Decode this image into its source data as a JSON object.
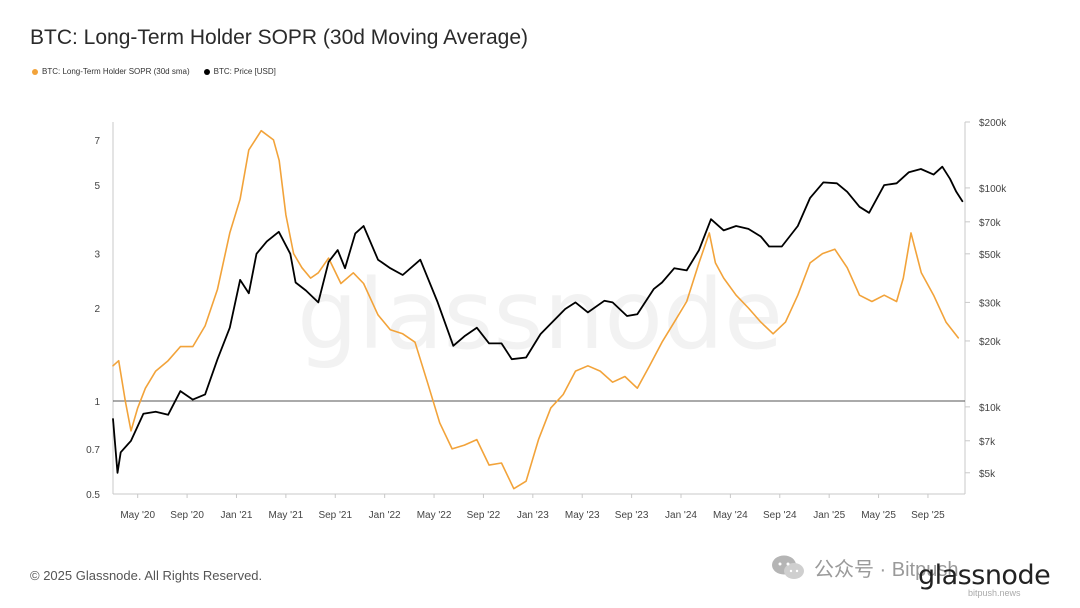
{
  "title": "BTC: Long-Term Holder SOPR (30d Moving Average)",
  "footer": "© 2025 Glassnode. All Rights Reserved.",
  "watermark": "glassnode",
  "brand": {
    "wechat_label": "公众号 · Bitpush",
    "logo_text": "glassnode",
    "sub_text": "bitpush.news"
  },
  "colors": {
    "sopr": "#f2a33a",
    "price": "#000000",
    "axis": "#c8c8c8",
    "refline": "#555555"
  },
  "chart_data": {
    "type": "line",
    "title": "BTC: Long-Term Holder SOPR (30d Moving Average)",
    "legend_position": "top-left",
    "grid": false,
    "x_range": [
      "2020-03",
      "2025-12"
    ],
    "x_ticks": [
      "May '20",
      "Sep '20",
      "Jan '21",
      "May '21",
      "Sep '21",
      "Jan '22",
      "May '22",
      "Sep '22",
      "Jan '23",
      "May '23",
      "Sep '23",
      "Jan '24",
      "May '24",
      "Sep '24",
      "Jan '25",
      "May '25",
      "Sep '25"
    ],
    "y_left": {
      "scale": "log",
      "range": [
        0.5,
        8
      ],
      "ticks": [
        0.5,
        0.7,
        1,
        2,
        3,
        5,
        7
      ],
      "tick_labels": [
        "0.5",
        "0.7",
        "1",
        "2",
        "3",
        "5",
        "7"
      ]
    },
    "y_right": {
      "scale": "log",
      "range": [
        4000,
        200000
      ],
      "ticks": [
        5000,
        7000,
        10000,
        20000,
        30000,
        50000,
        70000,
        100000,
        200000
      ],
      "tick_labels": [
        "$5k",
        "$7k",
        "$10k",
        "$20k",
        "$30k",
        "$50k",
        "$70k",
        "$100k",
        "$200k"
      ]
    },
    "reference_line": {
      "axis": "left",
      "value": 1
    },
    "series": [
      {
        "name": "BTC: Long-Term Holder SOPR (30d sma)",
        "axis": "left",
        "x": [
          "2020-03-01",
          "2020-03-15",
          "2020-04-01",
          "2020-04-15",
          "2020-05-01",
          "2020-05-20",
          "2020-06-15",
          "2020-07-15",
          "2020-08-15",
          "2020-09-15",
          "2020-10-15",
          "2020-11-15",
          "2020-12-15",
          "2021-01-10",
          "2021-02-01",
          "2021-03-01",
          "2021-04-01",
          "2021-04-15",
          "2021-05-01",
          "2021-05-20",
          "2021-06-10",
          "2021-07-01",
          "2021-07-20",
          "2021-08-15",
          "2021-09-15",
          "2021-10-15",
          "2021-11-10",
          "2021-12-15",
          "2022-01-15",
          "2022-02-15",
          "2022-03-15",
          "2022-04-15",
          "2022-05-15",
          "2022-06-15",
          "2022-07-15",
          "2022-08-15",
          "2022-09-15",
          "2022-10-15",
          "2022-11-15",
          "2022-12-15",
          "2023-01-15",
          "2023-02-15",
          "2023-03-15",
          "2023-04-15",
          "2023-05-15",
          "2023-06-15",
          "2023-07-15",
          "2023-08-15",
          "2023-09-15",
          "2023-10-15",
          "2023-11-15",
          "2023-12-15",
          "2024-01-15",
          "2024-02-15",
          "2024-03-10",
          "2024-03-25",
          "2024-04-15",
          "2024-05-15",
          "2024-06-15",
          "2024-07-15",
          "2024-08-15",
          "2024-09-15",
          "2024-10-15",
          "2024-11-15",
          "2024-12-15",
          "2025-01-15",
          "2025-02-15",
          "2025-03-15",
          "2025-04-15",
          "2025-05-15",
          "2025-06-15",
          "2025-07-01",
          "2025-07-20",
          "2025-08-15",
          "2025-09-15",
          "2025-10-15",
          "2025-11-15"
        ],
        "values": [
          1.3,
          1.35,
          1.0,
          0.8,
          0.95,
          1.1,
          1.25,
          1.35,
          1.5,
          1.5,
          1.75,
          2.3,
          3.5,
          4.5,
          6.5,
          7.5,
          7.0,
          6.0,
          4.0,
          3.0,
          2.7,
          2.5,
          2.6,
          2.9,
          2.4,
          2.6,
          2.4,
          1.9,
          1.7,
          1.65,
          1.55,
          1.15,
          0.85,
          0.7,
          0.72,
          0.75,
          0.62,
          0.63,
          0.52,
          0.55,
          0.75,
          0.95,
          1.05,
          1.25,
          1.3,
          1.25,
          1.15,
          1.2,
          1.1,
          1.3,
          1.55,
          1.8,
          2.1,
          2.8,
          3.5,
          2.8,
          2.5,
          2.2,
          2.0,
          1.8,
          1.65,
          1.8,
          2.2,
          2.8,
          3.0,
          3.1,
          2.7,
          2.2,
          2.1,
          2.2,
          2.1,
          2.5,
          3.5,
          2.6,
          2.2,
          1.8,
          1.6
        ]
      },
      {
        "name": "BTC: Price [USD]",
        "axis": "right",
        "x": [
          "2020-03-01",
          "2020-03-12",
          "2020-03-20",
          "2020-04-15",
          "2020-05-15",
          "2020-06-15",
          "2020-07-15",
          "2020-08-15",
          "2020-09-15",
          "2020-10-15",
          "2020-11-15",
          "2020-12-15",
          "2021-01-10",
          "2021-02-01",
          "2021-02-20",
          "2021-03-15",
          "2021-04-14",
          "2021-05-12",
          "2021-05-25",
          "2021-06-20",
          "2021-07-20",
          "2021-08-15",
          "2021-09-07",
          "2021-09-25",
          "2021-10-20",
          "2021-11-10",
          "2021-12-15",
          "2022-01-15",
          "2022-02-15",
          "2022-03-28",
          "2022-05-10",
          "2022-06-18",
          "2022-07-15",
          "2022-08-15",
          "2022-09-15",
          "2022-10-15",
          "2022-11-10",
          "2022-12-15",
          "2023-01-20",
          "2023-02-15",
          "2023-03-20",
          "2023-04-15",
          "2023-05-15",
          "2023-06-25",
          "2023-07-15",
          "2023-08-20",
          "2023-09-15",
          "2023-10-25",
          "2023-11-15",
          "2023-12-15",
          "2024-01-15",
          "2024-02-15",
          "2024-03-14",
          "2024-04-15",
          "2024-05-15",
          "2024-06-15",
          "2024-07-15",
          "2024-08-05",
          "2024-09-06",
          "2024-10-15",
          "2024-11-15",
          "2024-12-17",
          "2025-01-20",
          "2025-02-15",
          "2025-03-15",
          "2025-04-08",
          "2025-05-15",
          "2025-06-15",
          "2025-07-15",
          "2025-08-14",
          "2025-09-15",
          "2025-10-06",
          "2025-10-25",
          "2025-11-10",
          "2025-11-25"
        ],
        "values": [
          8800,
          5000,
          6200,
          7000,
          9300,
          9500,
          9200,
          11800,
          10800,
          11400,
          16500,
          23000,
          38000,
          33000,
          50000,
          57000,
          63000,
          50000,
          37000,
          34000,
          30000,
          46000,
          52000,
          43000,
          62000,
          67000,
          47000,
          43000,
          40000,
          47000,
          30000,
          19000,
          21000,
          23000,
          19500,
          19500,
          16500,
          16800,
          21500,
          24000,
          28000,
          30000,
          27000,
          30500,
          30000,
          26000,
          26500,
          34500,
          37000,
          43000,
          42000,
          52000,
          72000,
          64000,
          67000,
          65000,
          60000,
          54000,
          54000,
          67000,
          90000,
          106000,
          105000,
          96000,
          82000,
          77000,
          103000,
          105000,
          118000,
          122000,
          115000,
          125000,
          110000,
          96000,
          87000
        ]
      }
    ]
  }
}
